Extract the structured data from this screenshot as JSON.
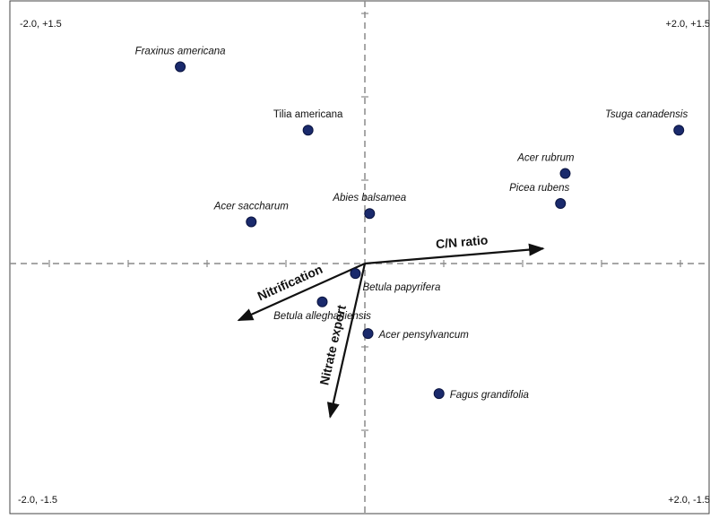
{
  "chart_data": {
    "type": "scatter",
    "title": "",
    "xlabel": "",
    "ylabel": "",
    "xlim": [
      -2.0,
      2.0
    ],
    "ylim": [
      -1.5,
      1.5
    ],
    "corner_labels": {
      "top_left": "-2.0, +1.5",
      "top_right": "+2.0, +1.5",
      "bottom_left": "-2.0, -1.5",
      "bottom_right": "+2.0, -1.5"
    },
    "point_color": "#1a2a6c",
    "points": [
      {
        "name": "Fraxinus americana",
        "x": -1.17,
        "y": 1.18,
        "italic": true,
        "anchor": "middle",
        "pos": "above"
      },
      {
        "name": "Tilia americana",
        "x": -0.36,
        "y": 0.8,
        "italic": false,
        "anchor": "middle",
        "pos": "above"
      },
      {
        "name": "Tsuga canadensis",
        "x": 1.99,
        "y": 0.8,
        "italic": true,
        "anchor": "end",
        "pos": "above"
      },
      {
        "name": "Acer  rubrum",
        "x": 1.27,
        "y": 0.54,
        "italic": true,
        "anchor": "end",
        "pos": "above"
      },
      {
        "name": "Picea rubens",
        "x": 1.24,
        "y": 0.36,
        "italic": true,
        "anchor": "end",
        "pos": "above"
      },
      {
        "name": "Acer saccharum",
        "x": -0.72,
        "y": 0.25,
        "italic": true,
        "anchor": "middle",
        "pos": "above"
      },
      {
        "name": "Abies balsamea",
        "x": 0.03,
        "y": 0.3,
        "italic": true,
        "anchor": "middle",
        "pos": "above"
      },
      {
        "name": "Betula papyrifera",
        "x": -0.06,
        "y": -0.06,
        "italic": true,
        "anchor": "start",
        "pos": "below"
      },
      {
        "name": "Betula alleghaniensis",
        "x": -0.27,
        "y": -0.23,
        "italic": true,
        "anchor": "middle",
        "pos": "below"
      },
      {
        "name": "Acer pensylvancum",
        "x": 0.02,
        "y": -0.42,
        "italic": true,
        "anchor": "start",
        "pos": "right"
      },
      {
        "name": "Fagus grandifolia",
        "x": 0.47,
        "y": -0.78,
        "italic": true,
        "anchor": "start",
        "pos": "right"
      }
    ],
    "vectors": [
      {
        "label": "C/N ratio",
        "x": 1.13,
        "y": 0.09
      },
      {
        "label": "Nitrification",
        "x": -0.8,
        "y": -0.34
      },
      {
        "label": "Nitrate export",
        "x": -0.22,
        "y": -0.92
      }
    ]
  }
}
